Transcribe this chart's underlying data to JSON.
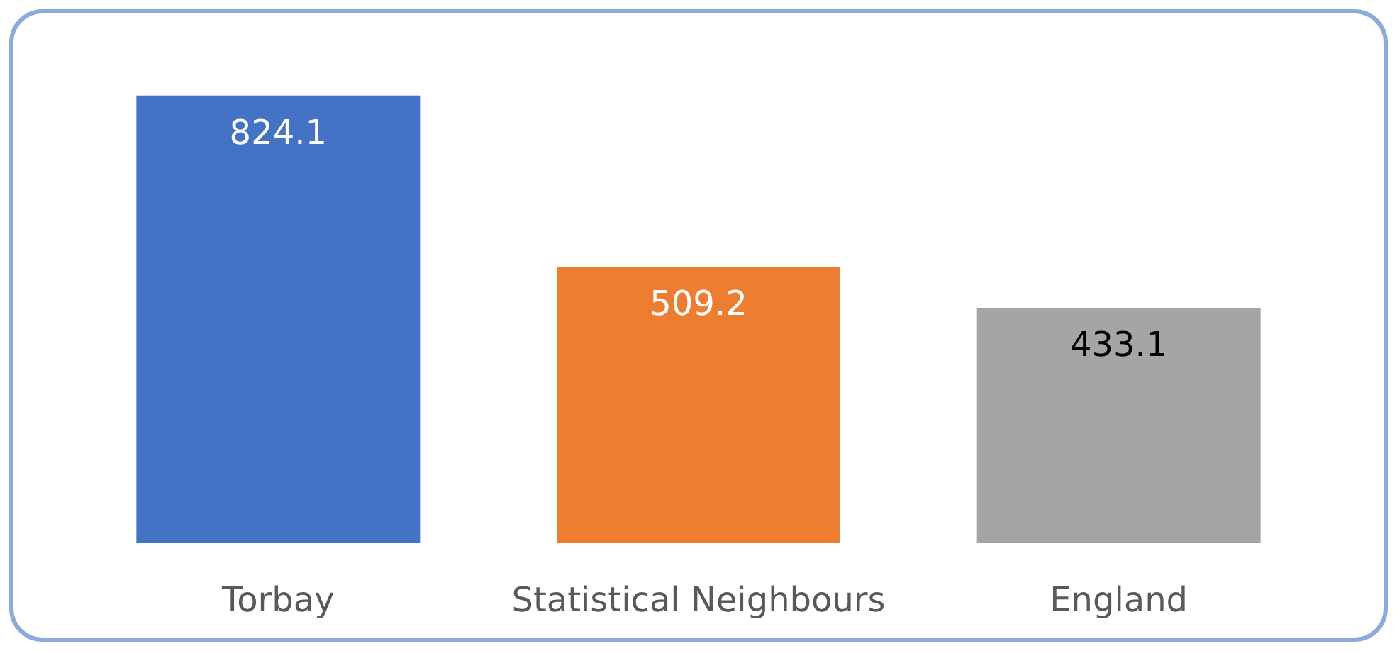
{
  "chart_data": {
    "type": "bar",
    "categories": [
      "Torbay",
      "Statistical Neighbours",
      "England"
    ],
    "values": [
      824.1,
      509.2,
      433.1
    ],
    "colors": [
      "#4472c4",
      "#ed7d31",
      "#a5a5a5"
    ],
    "data_labels": true
  }
}
